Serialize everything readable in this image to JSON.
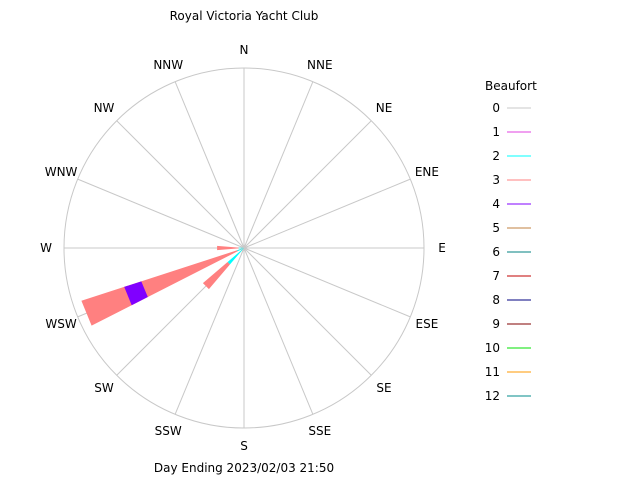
{
  "chart_data": {
    "type": "windrose",
    "title": "Royal Victoria Yacht Club",
    "subtitle": "Day Ending 2023/02/03 21:50",
    "directions": [
      "N",
      "NNE",
      "NE",
      "ENE",
      "E",
      "ESE",
      "SE",
      "SSE",
      "S",
      "SSW",
      "SW",
      "WSW",
      "W",
      "WNW",
      "NW",
      "NNW"
    ],
    "legend_title": "Beaufort",
    "grid": true,
    "legend_placement": "right",
    "series": [
      {
        "name": "0",
        "color": "#c8c8c8"
      },
      {
        "name": "1",
        "color": "#e040e0"
      },
      {
        "name": "2",
        "color": "#00ffff"
      },
      {
        "name": "3",
        "color": "#ff8080"
      },
      {
        "name": "4",
        "color": "#8000ff"
      },
      {
        "name": "5",
        "color": "#c08040"
      },
      {
        "name": "6",
        "color": "#008080"
      },
      {
        "name": "7",
        "color": "#c00000"
      },
      {
        "name": "8",
        "color": "#000080"
      },
      {
        "name": "9",
        "color": "#800000"
      },
      {
        "name": "10",
        "color": "#00e000"
      },
      {
        "name": "11",
        "color": "#ff9900"
      },
      {
        "name": "12",
        "color": "#008b8b"
      }
    ],
    "petals": [
      {
        "direction": "WSW",
        "levels": [
          {
            "beaufort": "2",
            "from": 0.0,
            "to": 0.04
          },
          {
            "beaufort": "3",
            "from": 0.04,
            "to": 0.95
          },
          {
            "beaufort": "4",
            "from": 0.6,
            "to": 0.7
          }
        ]
      },
      {
        "direction": "SW",
        "levels": [
          {
            "beaufort": "2",
            "from": 0.0,
            "to": 0.12
          },
          {
            "beaufort": "3",
            "from": 0.12,
            "to": 0.3
          }
        ]
      },
      {
        "direction": "W",
        "levels": [
          {
            "beaufort": "2",
            "from": 0.0,
            "to": 0.03
          },
          {
            "beaufort": "3",
            "from": 0.03,
            "to": 0.15
          }
        ]
      }
    ]
  }
}
